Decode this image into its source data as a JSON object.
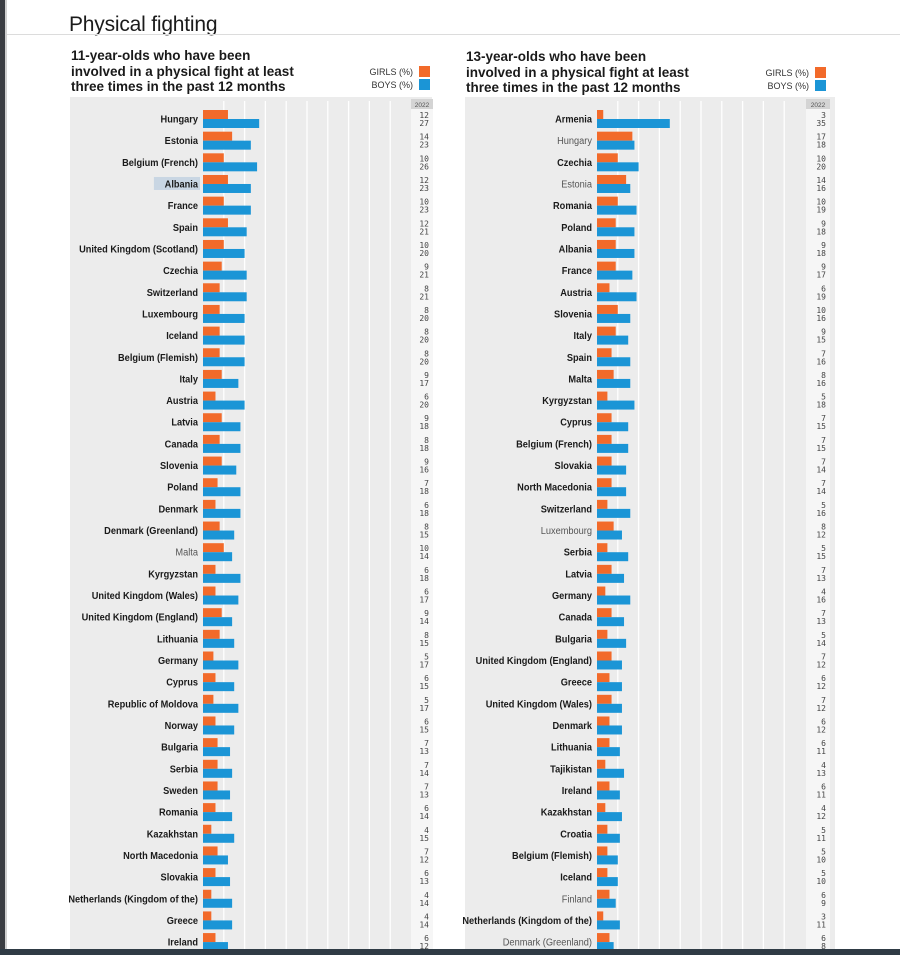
{
  "page": {
    "title": "Physical fighting"
  },
  "colors": {
    "girls": "#f26a2a",
    "boys": "#1b95d6",
    "panel_bg": "#ececec",
    "value_col_bg": "#f6f6f6",
    "gridline": "#ffffff"
  },
  "chart_data": [
    {
      "type": "bar",
      "orientation": "horizontal",
      "title": "11-year-olds who have been involved in a physical fight at least three times in the past 12 months",
      "title_lines": [
        "11-year-olds who have been",
        "involved in a physical fight at least",
        "three times in the past 12 months"
      ],
      "legend": [
        "GIRLS (%)",
        "BOYS (%)"
      ],
      "legend_placement": "top-right",
      "value_column_header": "2022",
      "xlim": [
        0,
        40
      ],
      "grid": true,
      "categories": [
        "Hungary",
        "Estonia",
        "Belgium (French)",
        "Albania",
        "France",
        "Spain",
        "United Kingdom (Scotland)",
        "Czechia",
        "Switzerland",
        "Luxembourg",
        "Iceland",
        "Belgium (Flemish)",
        "Italy",
        "Austria",
        "Latvia",
        "Canada",
        "Slovenia",
        "Poland",
        "Denmark",
        "Denmark (Greenland)",
        "Malta",
        "Kyrgyzstan",
        "United Kingdom (Wales)",
        "United Kingdom (England)",
        "Lithuania",
        "Germany",
        "Cyprus",
        "Republic of Moldova",
        "Norway",
        "Bulgaria",
        "Serbia",
        "Sweden",
        "Romania",
        "Kazakhstan",
        "North Macedonia",
        "Slovakia",
        "Netherlands (Kingdom of the)",
        "Greece",
        "Ireland"
      ],
      "non_significant_labels": [
        "Malta"
      ],
      "highlighted_label": "Albania",
      "series": [
        {
          "name": "GIRLS (%)",
          "values": [
            12,
            14,
            10,
            12,
            10,
            12,
            10,
            9,
            8,
            8,
            8,
            8,
            9,
            6,
            9,
            8,
            9,
            7,
            6,
            8,
            10,
            6,
            6,
            9,
            8,
            5,
            6,
            5,
            6,
            7,
            7,
            7,
            6,
            4,
            7,
            6,
            4,
            4,
            6
          ]
        },
        {
          "name": "BOYS (%)",
          "values": [
            27,
            23,
            26,
            23,
            23,
            21,
            20,
            21,
            21,
            20,
            20,
            20,
            17,
            20,
            18,
            18,
            16,
            18,
            18,
            15,
            14,
            18,
            17,
            14,
            15,
            17,
            15,
            17,
            15,
            13,
            14,
            13,
            14,
            15,
            12,
            13,
            14,
            14,
            12
          ]
        }
      ]
    },
    {
      "type": "bar",
      "orientation": "horizontal",
      "title": "13-year-olds who have been involved in a physical fight at least three times in the past 12 months",
      "title_lines": [
        "13-year-olds who have been",
        "involved in a physical fight at least",
        "three times in the past 12 months"
      ],
      "legend": [
        "GIRLS (%)",
        "BOYS (%)"
      ],
      "legend_placement": "top-right",
      "value_column_header": "2022",
      "xlim": [
        0,
        40
      ],
      "grid": true,
      "categories": [
        "Armenia",
        "Hungary",
        "Czechia",
        "Estonia",
        "Romania",
        "Poland",
        "Albania",
        "France",
        "Austria",
        "Slovenia",
        "Italy",
        "Spain",
        "Malta",
        "Kyrgyzstan",
        "Cyprus",
        "Belgium (French)",
        "Slovakia",
        "North Macedonia",
        "Switzerland",
        "Luxembourg",
        "Serbia",
        "Latvia",
        "Germany",
        "Canada",
        "Bulgaria",
        "United Kingdom (England)",
        "Greece",
        "United Kingdom (Wales)",
        "Denmark",
        "Lithuania",
        "Tajikistan",
        "Ireland",
        "Kazakhstan",
        "Croatia",
        "Belgium (Flemish)",
        "Iceland",
        "Finland",
        "Netherlands (Kingdom of the)",
        "Denmark (Greenland)"
      ],
      "non_significant_labels": [
        "Hungary",
        "Estonia",
        "Luxembourg",
        "Finland",
        "Denmark (Greenland)"
      ],
      "highlighted_label": "",
      "series": [
        {
          "name": "GIRLS (%)",
          "values": [
            3,
            17,
            10,
            14,
            10,
            9,
            9,
            9,
            6,
            10,
            9,
            7,
            8,
            5,
            7,
            7,
            7,
            7,
            5,
            8,
            5,
            7,
            4,
            7,
            5,
            7,
            6,
            7,
            6,
            6,
            4,
            6,
            4,
            5,
            5,
            5,
            6,
            3,
            6
          ]
        },
        {
          "name": "BOYS (%)",
          "values": [
            35,
            18,
            20,
            16,
            19,
            18,
            18,
            17,
            19,
            16,
            15,
            16,
            16,
            18,
            15,
            15,
            14,
            14,
            16,
            12,
            15,
            13,
            16,
            13,
            14,
            12,
            12,
            12,
            12,
            11,
            13,
            11,
            12,
            11,
            10,
            10,
            9,
            11,
            8
          ]
        }
      ]
    }
  ]
}
